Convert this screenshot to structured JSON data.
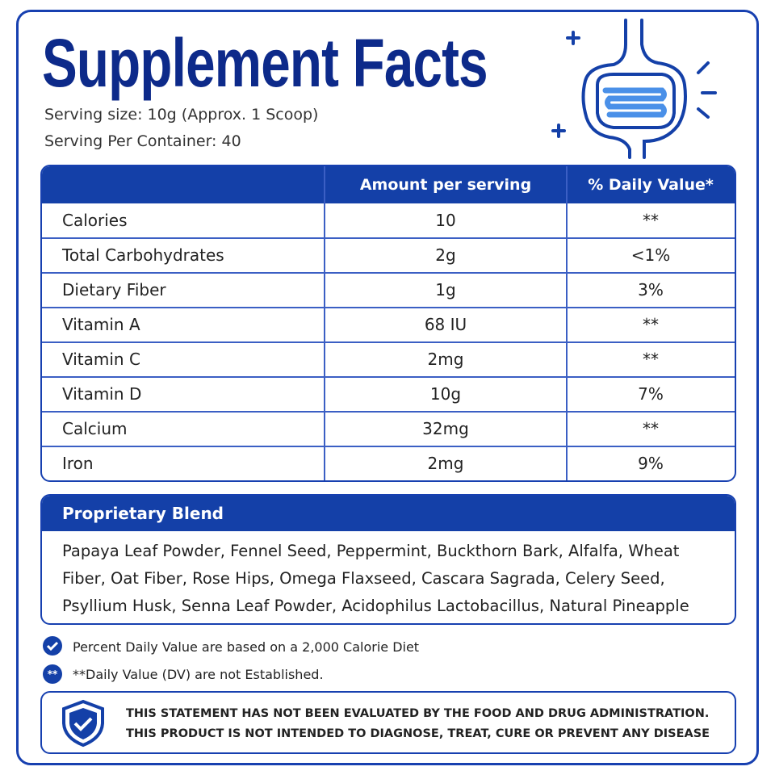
{
  "header": {
    "title": "Supplement Facts",
    "serving_size": "Serving size: 10g (Approx. 1 Scoop)",
    "servings_per_container": "Serving Per Container: 40"
  },
  "table": {
    "columns": [
      "Amount per serving",
      "% Daily Value*"
    ],
    "rows": [
      [
        "Calories",
        "10",
        "**"
      ],
      [
        "Total Carbohydrates",
        "2g",
        "<1%"
      ],
      [
        "Dietary Fiber",
        "1g",
        "3%"
      ],
      [
        "Vitamin A",
        "68 IU",
        "**"
      ],
      [
        "Vitamin C",
        "2mg",
        "**"
      ],
      [
        "Vitamin D",
        "10g",
        "7%"
      ],
      [
        "Calcium",
        "32mg",
        "**"
      ],
      [
        "Iron",
        "2mg",
        "9%"
      ]
    ]
  },
  "blend": {
    "title": "Proprietary Blend",
    "text": "Papaya Leaf Powder, Fennel Seed, Peppermint, Buckthorn Bark, Alfalfa, Wheat Fiber, Oat Fiber, Rose Hips, Omega Flaxseed, Cascara Sagrada, Celery Seed, Psyllium Husk, Senna Leaf Powder, Acidophilus Lactobacillus, Natural Pineapple Powder"
  },
  "notes": {
    "daily_value": "Percent Daily Value are based on a 2,000 Calorie Diet",
    "badge": "**",
    "not_established": "**Daily Value (DV) are not Established."
  },
  "disclaimer": [
    "THIS STATEMENT HAS NOT BEEN EVALUATED BY THE FOOD AND DRUG ADMINISTRATION.",
    "THIS PRODUCT IS NOT INTENDED TO DIAGNOSE, TREAT, CURE OR PREVENT ANY DISEASE"
  ]
}
